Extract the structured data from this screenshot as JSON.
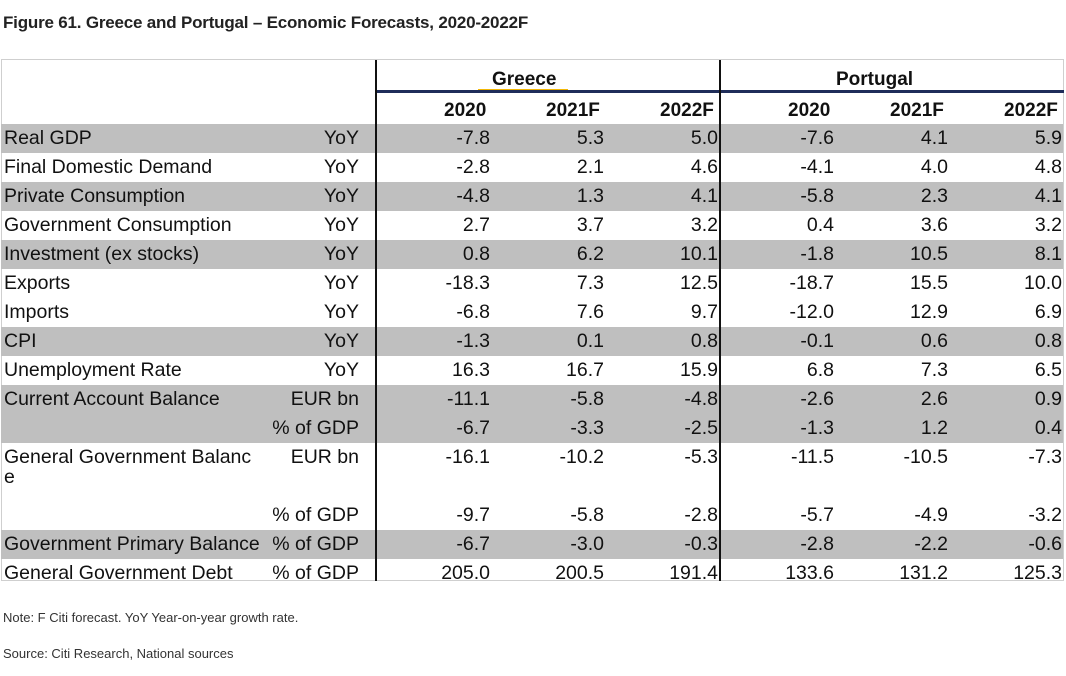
{
  "title": "Figure 61. Greece and Portugal – Economic Forecasts, 2020-2022F",
  "groups": {
    "greece": "Greece",
    "portugal": "Portugal"
  },
  "years": [
    "2020",
    "2021F",
    "2022F"
  ],
  "colors": {
    "shade": "#bfbfbf",
    "accent": "#f2b705",
    "rule": "#1f2d5a"
  },
  "rows": [
    {
      "label": "Real GDP",
      "unit": "YoY",
      "greece": [
        "-7.8",
        "5.3",
        "5.0"
      ],
      "portugal": [
        "-7.6",
        "4.1",
        "5.9"
      ]
    },
    {
      "label": "Final Domestic Demand",
      "unit": "YoY",
      "greece": [
        "-2.8",
        "2.1",
        "4.6"
      ],
      "portugal": [
        "-4.1",
        "4.0",
        "4.8"
      ]
    },
    {
      "label": "Private Consumption",
      "unit": "YoY",
      "greece": [
        "-4.8",
        "1.3",
        "4.1"
      ],
      "portugal": [
        "-5.8",
        "2.3",
        "4.1"
      ]
    },
    {
      "label": "Government Consumption",
      "unit": "YoY",
      "greece": [
        "2.7",
        "3.7",
        "3.2"
      ],
      "portugal": [
        "0.4",
        "3.6",
        "3.2"
      ]
    },
    {
      "label": "Investment (ex stocks)",
      "unit": "YoY",
      "greece": [
        "0.8",
        "6.2",
        "10.1"
      ],
      "portugal": [
        "-1.8",
        "10.5",
        "8.1"
      ]
    },
    {
      "label": "Exports",
      "unit": "YoY",
      "greece": [
        "-18.3",
        "7.3",
        "12.5"
      ],
      "portugal": [
        "-18.7",
        "15.5",
        "10.0"
      ]
    },
    {
      "label": "Imports",
      "unit": "YoY",
      "greece": [
        "-6.8",
        "7.6",
        "9.7"
      ],
      "portugal": [
        "-12.0",
        "12.9",
        "6.9"
      ]
    },
    {
      "label": "CPI",
      "unit": "YoY",
      "greece": [
        "-1.3",
        "0.1",
        "0.8"
      ],
      "portugal": [
        "-0.1",
        "0.6",
        "0.8"
      ]
    },
    {
      "label": "Unemployment Rate",
      "unit": "YoY",
      "greece": [
        "16.3",
        "16.7",
        "15.9"
      ],
      "portugal": [
        "6.8",
        "7.3",
        "6.5"
      ]
    },
    {
      "label": "Current Account Balance",
      "unit": "EUR bn",
      "greece": [
        "-11.1",
        "-5.8",
        "-4.8"
      ],
      "portugal": [
        "-2.6",
        "2.6",
        "0.9"
      ]
    },
    {
      "label": "",
      "unit": "% of GDP",
      "greece": [
        "-6.7",
        "-3.3",
        "-2.5"
      ],
      "portugal": [
        "-1.3",
        "1.2",
        "0.4"
      ]
    },
    {
      "label": "General Government Balanc",
      "label_cont": "e",
      "unit": "EUR bn",
      "greece": [
        "-16.1",
        "-10.2",
        "-5.3"
      ],
      "portugal": [
        "-11.5",
        "-10.5",
        "-7.3"
      ]
    },
    {
      "label": "",
      "unit": "% of GDP",
      "greece": [
        "-9.7",
        "-5.8",
        "-2.8"
      ],
      "portugal": [
        "-5.7",
        "-4.9",
        "-3.2"
      ]
    },
    {
      "label": "Government Primary Balance",
      "unit": "% of GDP",
      "greece": [
        "-6.7",
        "-3.0",
        "-0.3"
      ],
      "portugal": [
        "-2.8",
        "-2.2",
        "-0.6"
      ]
    },
    {
      "label": "General Government Debt",
      "unit": "% of GDP",
      "greece": [
        "205.0",
        "200.5",
        "191.4"
      ],
      "portugal": [
        "133.6",
        "131.2",
        "125.3"
      ]
    }
  ],
  "notes": {
    "note": "Note: F Citi forecast. YoY Year-on-year growth rate.",
    "source": "Source: Citi Research, National sources"
  }
}
